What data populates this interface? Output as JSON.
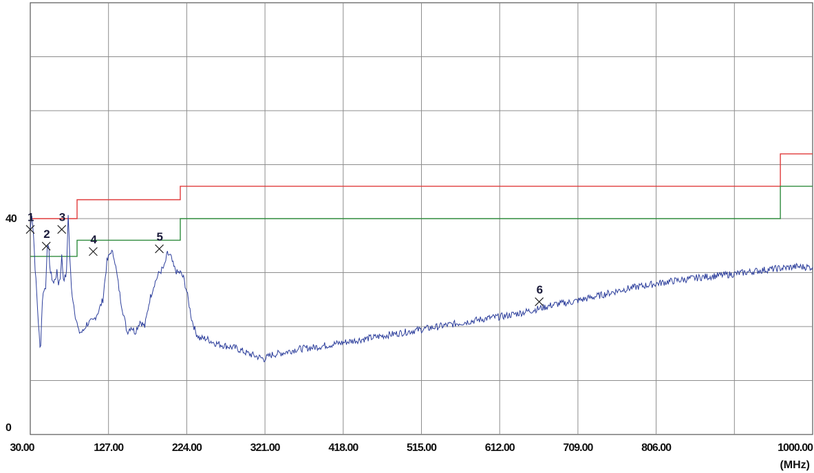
{
  "chart_data": {
    "type": "line",
    "title": "",
    "xlabel": "",
    "ylabel": "",
    "x_unit": "(MHz)",
    "x_scale": "linear",
    "xlim": [
      30,
      1000
    ],
    "ylim": [
      0,
      80
    ],
    "grid": true,
    "x_tick_labels": [
      "30.00",
      "127.00",
      "224.00",
      "321.00",
      "418.00",
      "515.00",
      "612.00",
      "709.00",
      "806.00",
      "1000.00"
    ],
    "y_tick_labels": [
      {
        "value": 0,
        "label": "0"
      },
      {
        "value": 40,
        "label": "40"
      }
    ],
    "colors": {
      "trace": "#2b3d9b",
      "limit_red": "#e03a3a",
      "limit_green": "#2e8b3c",
      "grid": "#8c8c8c",
      "frame": "#555555"
    },
    "series": [
      {
        "color": "#e03a3a",
        "step": true,
        "x": [
          30,
          88,
          88,
          216,
          216,
          960,
          960,
          1000
        ],
        "values": [
          40,
          40,
          43.5,
          43.5,
          46,
          46,
          52,
          52
        ]
      },
      {
        "color": "#2e8b3c",
        "step": true,
        "x": [
          30,
          88,
          88,
          216,
          216,
          960,
          960,
          1000
        ],
        "values": [
          33,
          33,
          36,
          36,
          40,
          40,
          46,
          46
        ]
      },
      {
        "color": "#2b3d9b",
        "noisy": true,
        "x": [
          30,
          32,
          34,
          36,
          38,
          40,
          42,
          43,
          45,
          47,
          49,
          51,
          53,
          55,
          57,
          59,
          61,
          63,
          65,
          67,
          69,
          71,
          73,
          75,
          77,
          79,
          81,
          83,
          86,
          90,
          95,
          100,
          108,
          115,
          120,
          125,
          130,
          134,
          138,
          142,
          146,
          150,
          155,
          160,
          166,
          172,
          178,
          184,
          190,
          196,
          200,
          204,
          208,
          212,
          216,
          220,
          224,
          227,
          230,
          235,
          240,
          248,
          258,
          270,
          285,
          300,
          310,
          320,
          330,
          345,
          360,
          380,
          400,
          420,
          440,
          460,
          480,
          500,
          520,
          540,
          560,
          580,
          600,
          620,
          640,
          660,
          680,
          700,
          720,
          740,
          760,
          780,
          800,
          820,
          840,
          860,
          880,
          900,
          920,
          940,
          960,
          980,
          1000
        ],
        "values": [
          38,
          41,
          37,
          31,
          26,
          21,
          16,
          17,
          25,
          27,
          27,
          35,
          34,
          30,
          29,
          28,
          29,
          30,
          28,
          29,
          33,
          29,
          29,
          30,
          41,
          33,
          27,
          25,
          22,
          19,
          19,
          20.5,
          21,
          23,
          25,
          32,
          34,
          33,
          29,
          25,
          22,
          19,
          20,
          19,
          21,
          20,
          25,
          28,
          30,
          31,
          33.5,
          33,
          31,
          30,
          30,
          29,
          26.5,
          24,
          21.5,
          19,
          17.8,
          17.8,
          17,
          16.5,
          16,
          15,
          14.5,
          14,
          14.8,
          15.2,
          15.8,
          16.1,
          16.6,
          17.1,
          17.6,
          18.1,
          18.6,
          19.1,
          19.6,
          20.1,
          20.6,
          21.1,
          21.6,
          22,
          22.6,
          23.3,
          24.1,
          24.5,
          25.2,
          25.9,
          26.7,
          27.3,
          27.8,
          28.3,
          28.7,
          29.1,
          29.4,
          29.7,
          30.1,
          30.5,
          30.8,
          31.1,
          31
        ]
      }
    ],
    "markers": [
      {
        "label": "1",
        "x": 30.0,
        "y": 38.0
      },
      {
        "label": "2",
        "x": 49.8,
        "y": 34.9
      },
      {
        "label": "3",
        "x": 69.0,
        "y": 38.0
      },
      {
        "label": "4",
        "x": 108.0,
        "y": 33.9
      },
      {
        "label": "5",
        "x": 190.0,
        "y": 34.4
      },
      {
        "label": "6",
        "x": 661.0,
        "y": 24.6
      }
    ]
  }
}
